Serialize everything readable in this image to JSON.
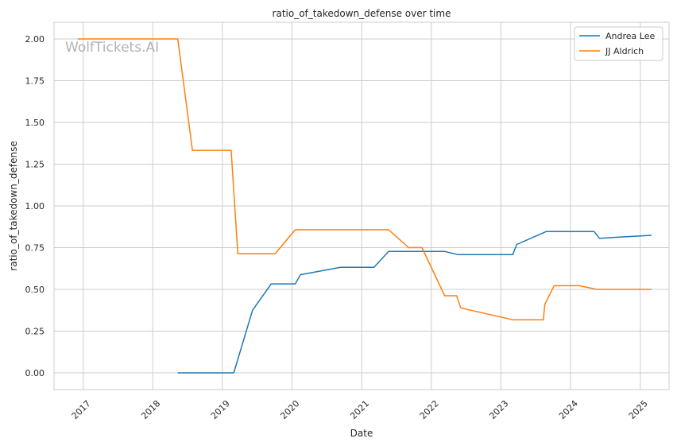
{
  "chart_data": {
    "type": "line",
    "title": "ratio_of_takedown_defense over time",
    "xlabel": "Date",
    "ylabel": "ratio_of_takedown_defense",
    "watermark": "WolfTickets.AI",
    "x_ticks": [
      "2017",
      "2018",
      "2019",
      "2020",
      "2021",
      "2022",
      "2023",
      "2024",
      "2025"
    ],
    "y_ticks": [
      "0.00",
      "0.25",
      "0.50",
      "0.75",
      "1.00",
      "1.25",
      "1.50",
      "1.75",
      "2.00"
    ],
    "xlim": [
      "2016-08-01",
      "2025-06-01"
    ],
    "ylim": [
      -0.1,
      2.1
    ],
    "grid": true,
    "legend_position": "top-right",
    "series": [
      {
        "name": "Andrea Lee",
        "color": "#1f77b4",
        "points": [
          [
            "2018-05-12",
            0.0
          ],
          [
            "2019-03-02",
            0.0
          ],
          [
            "2019-06-08",
            0.375
          ],
          [
            "2019-09-14",
            0.533
          ],
          [
            "2020-01-18",
            0.533
          ],
          [
            "2020-02-15",
            0.588
          ],
          [
            "2020-09-12",
            0.632
          ],
          [
            "2021-03-06",
            0.632
          ],
          [
            "2021-05-22",
            0.727
          ],
          [
            "2022-03-12",
            0.727
          ],
          [
            "2022-05-21",
            0.708
          ],
          [
            "2023-03-04",
            0.708
          ],
          [
            "2023-03-25",
            0.769
          ],
          [
            "2023-08-26",
            0.846
          ],
          [
            "2024-05-04",
            0.846
          ],
          [
            "2024-06-01",
            0.806
          ],
          [
            "2025-03-01",
            0.824
          ]
        ]
      },
      {
        "name": "JJ Aldrich",
        "color": "#ff7f0e",
        "points": [
          [
            "2016-12-03",
            2.0
          ],
          [
            "2018-05-12",
            2.0
          ],
          [
            "2018-07-28",
            1.333
          ],
          [
            "2019-02-16",
            1.333
          ],
          [
            "2019-03-23",
            0.714
          ],
          [
            "2019-10-05",
            0.714
          ],
          [
            "2020-01-18",
            0.857
          ],
          [
            "2021-05-22",
            0.857
          ],
          [
            "2021-09-04",
            0.75
          ],
          [
            "2021-11-13",
            0.75
          ],
          [
            "2022-03-12",
            0.462
          ],
          [
            "2022-05-14",
            0.462
          ],
          [
            "2022-06-04",
            0.389
          ],
          [
            "2023-03-04",
            0.318
          ],
          [
            "2023-08-12",
            0.318
          ],
          [
            "2023-08-19",
            0.409
          ],
          [
            "2023-10-07",
            0.522
          ],
          [
            "2024-02-17",
            0.522
          ],
          [
            "2024-05-18",
            0.5
          ],
          [
            "2025-03-01",
            0.5
          ]
        ]
      }
    ]
  }
}
